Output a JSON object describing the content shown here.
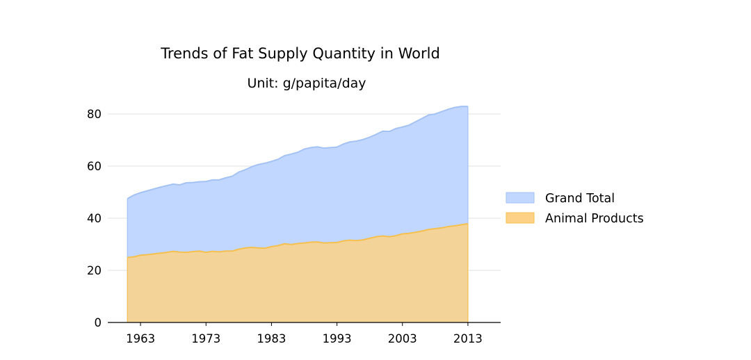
{
  "chart_data": {
    "type": "area",
    "title": "Trends of Fat Supply Quantity in World",
    "subtitle": "Unit: g/papita/day",
    "xlabel": "",
    "ylabel": "",
    "xlim": [
      1958,
      2018
    ],
    "ylim": [
      0,
      88
    ],
    "x_ticks": [
      1963,
      1973,
      1983,
      1993,
      2003,
      2013
    ],
    "y_ticks": [
      0,
      20,
      40,
      60,
      80
    ],
    "grid": "horizontal",
    "legend_position": "right",
    "x": [
      1961,
      1962,
      1963,
      1964,
      1965,
      1966,
      1967,
      1968,
      1969,
      1970,
      1971,
      1972,
      1973,
      1974,
      1975,
      1976,
      1977,
      1978,
      1979,
      1980,
      1981,
      1982,
      1983,
      1984,
      1985,
      1986,
      1987,
      1988,
      1989,
      1990,
      1991,
      1992,
      1993,
      1994,
      1995,
      1996,
      1997,
      1998,
      1999,
      2000,
      2001,
      2002,
      2003,
      2004,
      2005,
      2006,
      2007,
      2008,
      2009,
      2010,
      2011,
      2012,
      2013
    ],
    "series": [
      {
        "name": "Grand Total",
        "color": "#a4c2f4",
        "fill": "#c1d7ff",
        "values": [
          47.5,
          48.9,
          49.8,
          50.5,
          51.2,
          51.9,
          52.5,
          53.1,
          52.8,
          53.6,
          53.7,
          54.0,
          54.1,
          54.7,
          54.7,
          55.5,
          56.1,
          57.7,
          58.6,
          59.8,
          60.6,
          61.1,
          61.8,
          62.6,
          64.0,
          64.6,
          65.3,
          66.5,
          67.1,
          67.4,
          66.9,
          67.1,
          67.3,
          68.5,
          69.3,
          69.6,
          70.2,
          71.1,
          72.2,
          73.4,
          73.3,
          74.4,
          75.0,
          75.7,
          77.0,
          78.3,
          79.6,
          80.0,
          80.9,
          81.8,
          82.5,
          82.9,
          82.9
        ]
      },
      {
        "name": "Animal Products",
        "color": "#f6c04e",
        "fill": "#fdd287",
        "values": [
          24.9,
          25.2,
          25.8,
          26.0,
          26.3,
          26.6,
          26.9,
          27.3,
          27.0,
          26.9,
          27.2,
          27.4,
          26.9,
          27.3,
          27.1,
          27.4,
          27.4,
          28.1,
          28.6,
          28.8,
          28.6,
          28.5,
          29.1,
          29.5,
          30.2,
          29.9,
          30.3,
          30.5,
          30.8,
          30.9,
          30.5,
          30.6,
          30.7,
          31.3,
          31.6,
          31.4,
          31.7,
          32.3,
          32.9,
          33.2,
          32.9,
          33.3,
          34.0,
          34.2,
          34.6,
          35.1,
          35.7,
          36.0,
          36.3,
          36.8,
          37.1,
          37.5,
          37.9
        ]
      }
    ]
  }
}
